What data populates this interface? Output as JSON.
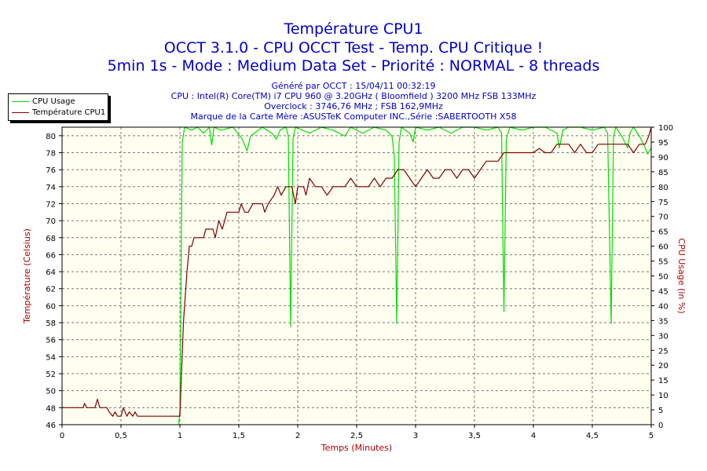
{
  "titles": {
    "line1": "Température CPU1",
    "line2": "OCCT 3.1.0 - CPU OCCT Test - Temp. CPU Critique !",
    "line3": "5min 1s - Mode : Medium Data Set - Priorité : NORMAL - 8 threads"
  },
  "info": {
    "generated": "Généré par OCCT : 15/04/11 00:32:19",
    "cpu": "CPU : Intel(R) Core(TM) i7 CPU 960 @ 3.20GHz ( Bloomfield ) 3200 MHz FSB 133MHz",
    "overclock": "Overclock : 3746,76 MHz ; FSB 162,9MHz",
    "motherboard": "Marque de la Carte Mère :ASUSTeK Computer INC.,Série :SABERTOOTH X58"
  },
  "colors": {
    "cpu_usage": "#00dd00",
    "temperature": "#800000",
    "plot_bg": "#fffff0",
    "grid": "#777777",
    "left_axis_label": "#aa0000",
    "x_axis_label": "#aa0000"
  },
  "chart_data": {
    "type": "line",
    "xlabel": "Temps (Minutes)",
    "ylabel_left": "Température (Celsius)",
    "ylabel_right": "CPU Usage (in %)",
    "xlim": [
      0,
      5
    ],
    "ylim_left": [
      46,
      81
    ],
    "ylim_right": [
      0,
      100
    ],
    "x_ticks": [
      "0",
      "0,5",
      "1",
      "1,5",
      "2",
      "2,5",
      "3",
      "3,5",
      "4",
      "4,5",
      "5"
    ],
    "y_left_ticks": [
      "46",
      "48",
      "50",
      "52",
      "54",
      "56",
      "58",
      "60",
      "62",
      "64",
      "66",
      "68",
      "70",
      "72",
      "74",
      "76",
      "78",
      "80"
    ],
    "y_right_ticks": [
      "0",
      "5",
      "10",
      "15",
      "20",
      "25",
      "30",
      "35",
      "40",
      "45",
      "50",
      "55",
      "60",
      "65",
      "70",
      "75",
      "80",
      "85",
      "90",
      "95",
      "100"
    ],
    "grid": true,
    "legend": "top-left",
    "series": [
      {
        "name": "CPU Usage",
        "axis": "right",
        "points": [
          [
            0.99,
            0
          ],
          [
            1.0,
            5
          ],
          [
            1.02,
            95
          ],
          [
            1.04,
            100
          ],
          [
            1.1,
            99
          ],
          [
            1.15,
            100
          ],
          [
            1.2,
            98
          ],
          [
            1.25,
            100
          ],
          [
            1.27,
            94
          ],
          [
            1.29,
            100
          ],
          [
            1.35,
            99
          ],
          [
            1.45,
            100
          ],
          [
            1.53,
            96
          ],
          [
            1.57,
            92
          ],
          [
            1.6,
            97
          ],
          [
            1.7,
            100
          ],
          [
            1.78,
            98
          ],
          [
            1.82,
            96
          ],
          [
            1.85,
            99
          ],
          [
            1.9,
            100
          ],
          [
            1.92,
            97
          ],
          [
            1.94,
            33
          ],
          [
            1.96,
            96
          ],
          [
            1.98,
            100
          ],
          [
            2.1,
            98
          ],
          [
            2.2,
            100
          ],
          [
            2.3,
            99
          ],
          [
            2.4,
            97
          ],
          [
            2.45,
            100
          ],
          [
            2.55,
            98
          ],
          [
            2.65,
            100
          ],
          [
            2.75,
            99
          ],
          [
            2.8,
            97
          ],
          [
            2.82,
            90
          ],
          [
            2.84,
            34
          ],
          [
            2.86,
            95
          ],
          [
            2.88,
            100
          ],
          [
            2.95,
            98
          ],
          [
            2.98,
            95
          ],
          [
            3.0,
            100
          ],
          [
            3.1,
            99
          ],
          [
            3.2,
            100
          ],
          [
            3.3,
            98
          ],
          [
            3.4,
            100
          ],
          [
            3.5,
            100
          ],
          [
            3.6,
            99
          ],
          [
            3.7,
            100
          ],
          [
            3.73,
            98
          ],
          [
            3.75,
            38
          ],
          [
            3.77,
            96
          ],
          [
            3.8,
            100
          ],
          [
            3.9,
            99
          ],
          [
            4.0,
            100
          ],
          [
            4.1,
            100
          ],
          [
            4.2,
            98
          ],
          [
            4.22,
            93
          ],
          [
            4.25,
            99
          ],
          [
            4.3,
            100
          ],
          [
            4.4,
            100
          ],
          [
            4.5,
            99
          ],
          [
            4.6,
            100
          ],
          [
            4.63,
            98
          ],
          [
            4.66,
            34
          ],
          [
            4.68,
            97
          ],
          [
            4.7,
            100
          ],
          [
            4.75,
            97
          ],
          [
            4.8,
            93
          ],
          [
            4.82,
            98
          ],
          [
            4.85,
            100
          ],
          [
            4.9,
            97
          ],
          [
            4.95,
            93
          ],
          [
            4.97,
            91
          ],
          [
            5.0,
            93
          ]
        ]
      },
      {
        "name": "Température CPU1",
        "axis": "left",
        "points": [
          [
            0.0,
            48
          ],
          [
            0.18,
            48
          ],
          [
            0.19,
            48.5
          ],
          [
            0.21,
            48
          ],
          [
            0.28,
            48
          ],
          [
            0.3,
            49
          ],
          [
            0.32,
            48
          ],
          [
            0.38,
            48
          ],
          [
            0.4,
            47.5
          ],
          [
            0.43,
            47
          ],
          [
            0.45,
            47.5
          ],
          [
            0.47,
            47
          ],
          [
            0.5,
            47
          ],
          [
            0.52,
            48
          ],
          [
            0.55,
            47
          ],
          [
            0.57,
            47.5
          ],
          [
            0.6,
            47
          ],
          [
            0.62,
            47.5
          ],
          [
            0.64,
            47
          ],
          [
            0.68,
            47
          ],
          [
            0.69,
            47
          ],
          [
            1.0,
            47
          ],
          [
            1.03,
            58
          ],
          [
            1.06,
            64
          ],
          [
            1.08,
            67
          ],
          [
            1.1,
            67
          ],
          [
            1.12,
            68
          ],
          [
            1.2,
            68
          ],
          [
            1.22,
            69
          ],
          [
            1.28,
            69
          ],
          [
            1.3,
            68
          ],
          [
            1.33,
            70
          ],
          [
            1.36,
            69
          ],
          [
            1.4,
            71
          ],
          [
            1.5,
            71
          ],
          [
            1.52,
            72
          ],
          [
            1.55,
            71
          ],
          [
            1.58,
            71
          ],
          [
            1.62,
            72
          ],
          [
            1.7,
            72
          ],
          [
            1.72,
            71
          ],
          [
            1.75,
            72
          ],
          [
            1.8,
            73
          ],
          [
            1.83,
            74
          ],
          [
            1.86,
            73
          ],
          [
            1.9,
            74
          ],
          [
            1.95,
            74
          ],
          [
            1.98,
            72
          ],
          [
            2.0,
            74
          ],
          [
            2.05,
            74
          ],
          [
            2.07,
            73
          ],
          [
            2.1,
            75
          ],
          [
            2.15,
            74
          ],
          [
            2.2,
            74
          ],
          [
            2.25,
            73
          ],
          [
            2.3,
            74
          ],
          [
            2.4,
            74
          ],
          [
            2.45,
            75
          ],
          [
            2.5,
            74
          ],
          [
            2.6,
            74
          ],
          [
            2.65,
            75
          ],
          [
            2.7,
            74
          ],
          [
            2.75,
            75
          ],
          [
            2.8,
            75
          ],
          [
            2.85,
            76
          ],
          [
            2.9,
            76
          ],
          [
            2.95,
            75
          ],
          [
            3.0,
            74
          ],
          [
            3.05,
            75
          ],
          [
            3.1,
            76
          ],
          [
            3.15,
            75
          ],
          [
            3.2,
            75
          ],
          [
            3.25,
            76
          ],
          [
            3.3,
            76
          ],
          [
            3.35,
            75
          ],
          [
            3.4,
            76
          ],
          [
            3.45,
            76
          ],
          [
            3.5,
            75
          ],
          [
            3.55,
            76
          ],
          [
            3.6,
            77
          ],
          [
            3.7,
            77
          ],
          [
            3.75,
            78
          ],
          [
            3.8,
            78
          ],
          [
            3.85,
            78
          ],
          [
            3.9,
            78
          ],
          [
            4.0,
            78
          ],
          [
            4.05,
            78.5
          ],
          [
            4.1,
            78
          ],
          [
            4.15,
            78
          ],
          [
            4.2,
            79
          ],
          [
            4.3,
            79
          ],
          [
            4.35,
            78
          ],
          [
            4.4,
            79
          ],
          [
            4.45,
            78
          ],
          [
            4.5,
            78
          ],
          [
            4.55,
            79
          ],
          [
            4.6,
            79
          ],
          [
            4.7,
            79
          ],
          [
            4.75,
            79
          ],
          [
            4.8,
            79
          ],
          [
            4.85,
            78
          ],
          [
            4.9,
            79
          ],
          [
            4.95,
            79
          ],
          [
            4.98,
            80
          ],
          [
            5.0,
            81
          ]
        ]
      }
    ]
  }
}
